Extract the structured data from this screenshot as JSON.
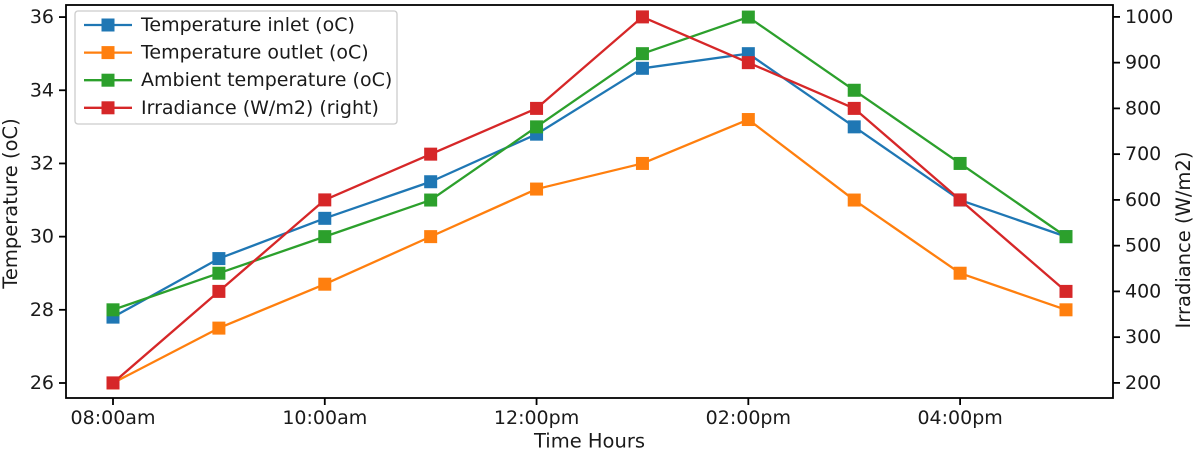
{
  "figure": {
    "background": "#ffffff",
    "spine_color": "#000000"
  },
  "chart_data": {
    "type": "line",
    "x": [
      "08:00am",
      "09:00am",
      "10:00am",
      "11:00am",
      "12:00pm",
      "01:00pm",
      "02:00pm",
      "03:00pm",
      "04:00pm",
      "05:00pm"
    ],
    "x_tick_labels": [
      "08:00am",
      "10:00am",
      "12:00pm",
      "02:00pm",
      "04:00pm"
    ],
    "x_tick_indices": [
      0,
      2,
      4,
      6,
      8
    ],
    "series": [
      {
        "name": "Temperature inlet (oC)",
        "axis": "left",
        "color": "#1f77b4",
        "marker": "square",
        "values": [
          27.8,
          29.4,
          30.5,
          31.5,
          32.8,
          34.6,
          35.0,
          33.0,
          31.0,
          30.0
        ]
      },
      {
        "name": "Temperature outlet (oC)",
        "axis": "left",
        "color": "#ff7f0e",
        "marker": "square",
        "values": [
          26.0,
          27.5,
          28.7,
          30.0,
          31.3,
          32.0,
          33.2,
          31.0,
          29.0,
          28.0
        ]
      },
      {
        "name": "Ambient temperature (oC)",
        "axis": "left",
        "color": "#2ca02c",
        "marker": "square",
        "values": [
          28.0,
          29.0,
          30.0,
          31.0,
          33.0,
          35.0,
          36.0,
          34.0,
          32.0,
          30.0
        ]
      },
      {
        "name": "Irradiance (W/m2) (right)",
        "axis": "right",
        "color": "#d62728",
        "marker": "square",
        "values": [
          200,
          400,
          600,
          700,
          800,
          1000,
          900,
          800,
          600,
          400
        ]
      }
    ],
    "left_axis": {
      "label": "Temperature (oC)",
      "label_color": "#0000ff",
      "ticks": [
        26,
        28,
        30,
        32,
        34,
        36
      ],
      "range": [
        25.59,
        36.33
      ]
    },
    "right_axis": {
      "label": "Irradiance (W/m2)",
      "label_color": "#00bfbf",
      "ticks": [
        200,
        300,
        400,
        500,
        600,
        700,
        800,
        900,
        1000
      ],
      "range": [
        167,
        1026
      ]
    },
    "xlabel": {
      "text": "Time Hours",
      "color": "#ff0000"
    },
    "legend": {
      "position": "upper left",
      "entries": [
        "Temperature inlet (oC)",
        "Temperature outlet (oC)",
        "Ambient temperature (oC)",
        "Irradiance (W/m2) (right)"
      ]
    },
    "grid": false,
    "title": ""
  }
}
